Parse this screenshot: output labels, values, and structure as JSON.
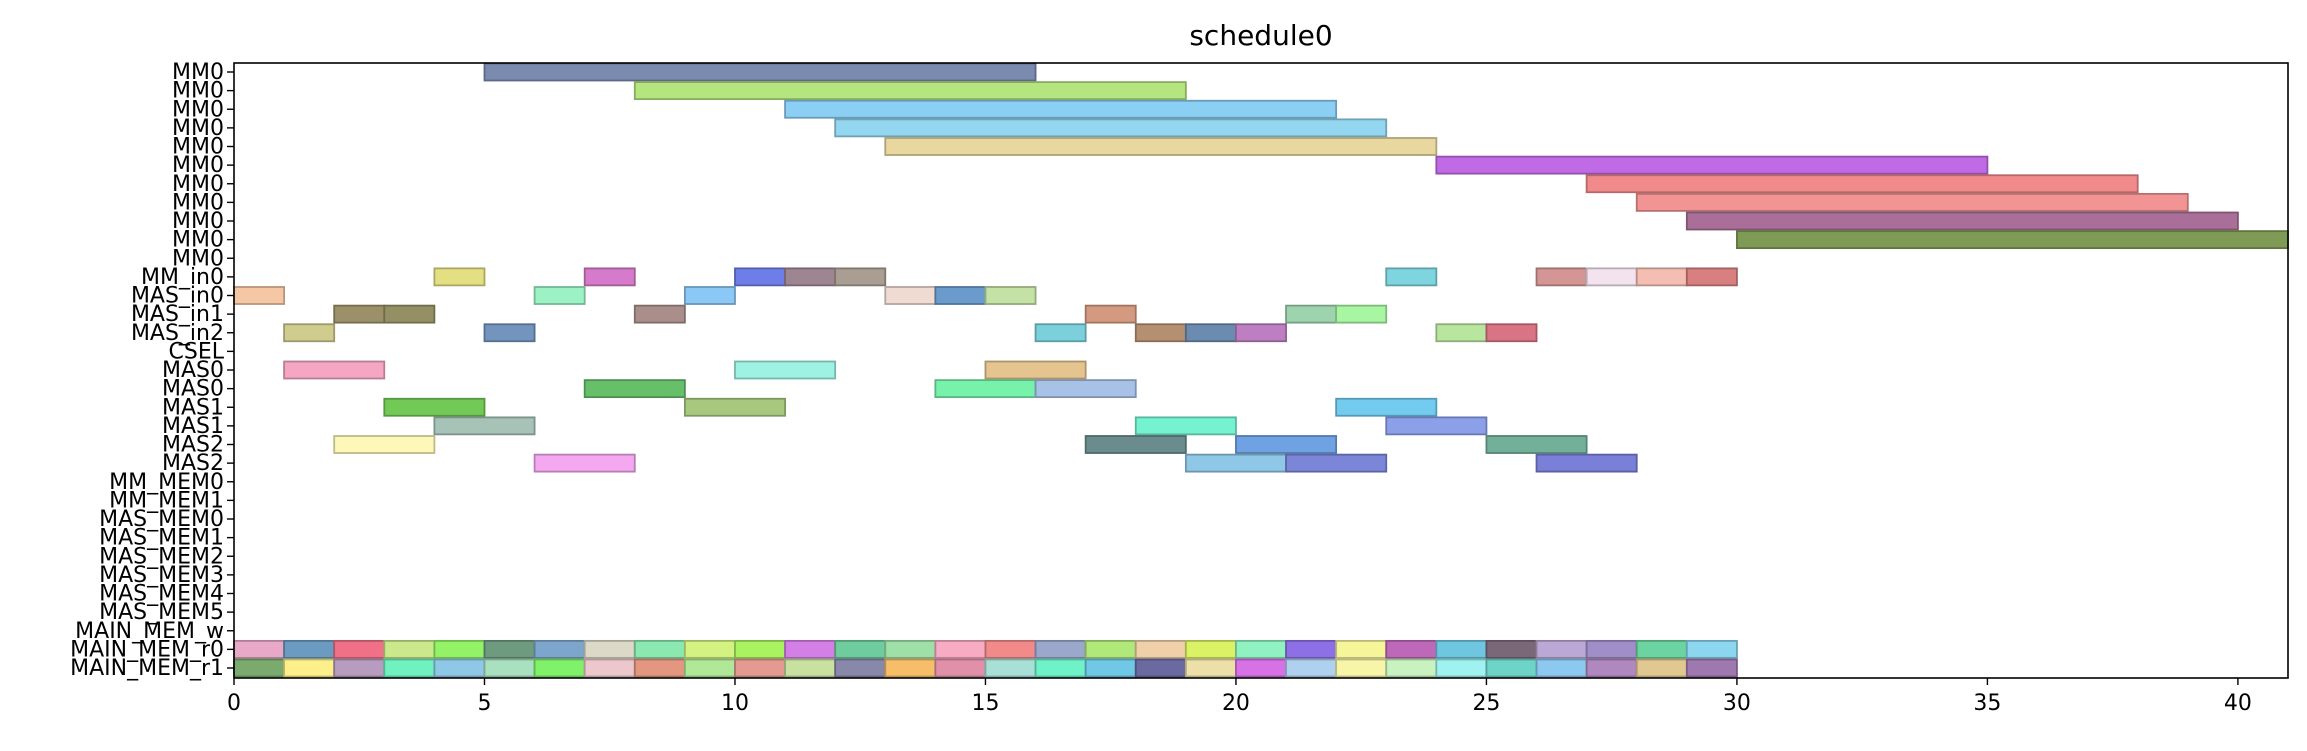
{
  "chart_data": {
    "type": "gantt",
    "title": "schedule0",
    "xlim": [
      0,
      41
    ],
    "x_ticks": [
      "0",
      "5",
      "10",
      "15",
      "20",
      "25",
      "30",
      "35",
      "40"
    ],
    "grid": false,
    "legend": "none",
    "rows": [
      "MM0",
      "MM0",
      "MM0",
      "MM0",
      "MM0",
      "MM0",
      "MM0",
      "MM0",
      "MM0",
      "MM0",
      "MM0",
      "MM_in0",
      "MAS_in0",
      "MAS_in1",
      "MAS_in2",
      "CSEL",
      "MAS0",
      "MAS0",
      "MAS1",
      "MAS1",
      "MAS2",
      "MAS2",
      "MM_MEM0",
      "MM_MEM1",
      "MAS_MEM0",
      "MAS_MEM1",
      "MAS_MEM2",
      "MAS_MEM3",
      "MAS_MEM4",
      "MAS_MEM5",
      "MAIN_MEM_w",
      "MAIN_MEM_r0",
      "MAIN_MEM_r1"
    ],
    "tasks": [
      {
        "row": 0,
        "start": 5,
        "end": 16,
        "color": "#7b8bb0"
      },
      {
        "row": 1,
        "start": 8,
        "end": 19,
        "color": "#b5e57e"
      },
      {
        "row": 2,
        "start": 11,
        "end": 22,
        "color": "#8ccff5"
      },
      {
        "row": 3,
        "start": 12,
        "end": 23,
        "color": "#92d6ef"
      },
      {
        "row": 4,
        "start": 13,
        "end": 24,
        "color": "#e8d8a0"
      },
      {
        "row": 5,
        "start": 24,
        "end": 35,
        "color": "#c06ae6"
      },
      {
        "row": 6,
        "start": 27,
        "end": 38,
        "color": "#f18a8a"
      },
      {
        "row": 7,
        "start": 28,
        "end": 39,
        "color": "#f29494"
      },
      {
        "row": 8,
        "start": 29,
        "end": 40,
        "color": "#a96f98"
      },
      {
        "row": 9,
        "start": 30,
        "end": 41,
        "color": "#7f9a55"
      },
      {
        "row": 11,
        "start": 4,
        "end": 5,
        "color": "#e3df82"
      },
      {
        "row": 11,
        "start": 7,
        "end": 8,
        "color": "#d67bcb"
      },
      {
        "row": 11,
        "start": 10,
        "end": 11,
        "color": "#6e7ee8"
      },
      {
        "row": 11,
        "start": 11,
        "end": 12,
        "color": "#9e8592"
      },
      {
        "row": 11,
        "start": 12,
        "end": 13,
        "color": "#a99e91"
      },
      {
        "row": 11,
        "start": 23,
        "end": 24,
        "color": "#7fd5df"
      },
      {
        "row": 11,
        "start": 26,
        "end": 27,
        "color": "#d49595"
      },
      {
        "row": 11,
        "start": 27,
        "end": 28,
        "color": "#f3e3ee"
      },
      {
        "row": 11,
        "start": 28,
        "end": 29,
        "color": "#f4bfb2"
      },
      {
        "row": 11,
        "start": 29,
        "end": 30,
        "color": "#d88080"
      },
      {
        "row": 12,
        "start": 0,
        "end": 1,
        "color": "#f6c7a4"
      },
      {
        "row": 12,
        "start": 6,
        "end": 7,
        "color": "#9cf2c4"
      },
      {
        "row": 12,
        "start": 9,
        "end": 10,
        "color": "#8cc8f5"
      },
      {
        "row": 12,
        "start": 13,
        "end": 14,
        "color": "#f0dbd2"
      },
      {
        "row": 12,
        "start": 14,
        "end": 15,
        "color": "#6b9bcc"
      },
      {
        "row": 12,
        "start": 15,
        "end": 16,
        "color": "#c4e2a5"
      },
      {
        "row": 13,
        "start": 2,
        "end": 3,
        "color": "#9b9067"
      },
      {
        "row": 13,
        "start": 3,
        "end": 4,
        "color": "#949064"
      },
      {
        "row": 13,
        "start": 8,
        "end": 9,
        "color": "#a98e8b"
      },
      {
        "row": 13,
        "start": 17,
        "end": 18,
        "color": "#d49a80"
      },
      {
        "row": 13,
        "start": 21,
        "end": 22,
        "color": "#9dd3ad"
      },
      {
        "row": 13,
        "start": 22,
        "end": 23,
        "color": "#a8f5a2"
      },
      {
        "row": 14,
        "start": 1,
        "end": 2,
        "color": "#cfcc8e"
      },
      {
        "row": 14,
        "start": 5,
        "end": 6,
        "color": "#7394bd"
      },
      {
        "row": 14,
        "start": 16,
        "end": 17,
        "color": "#7bd0dc"
      },
      {
        "row": 14,
        "start": 18,
        "end": 19,
        "color": "#b59070"
      },
      {
        "row": 14,
        "start": 19,
        "end": 20,
        "color": "#6b8bb0"
      },
      {
        "row": 14,
        "start": 20,
        "end": 21,
        "color": "#bd7fc2"
      },
      {
        "row": 14,
        "start": 24,
        "end": 25,
        "color": "#b9e69f"
      },
      {
        "row": 14,
        "start": 25,
        "end": 26,
        "color": "#d97484"
      },
      {
        "row": 16,
        "start": 1,
        "end": 3,
        "color": "#f5a6c2"
      },
      {
        "row": 16,
        "start": 10,
        "end": 12,
        "color": "#9ef2e4"
      },
      {
        "row": 16,
        "start": 15,
        "end": 17,
        "color": "#e6c48f"
      },
      {
        "row": 17,
        "start": 7,
        "end": 9,
        "color": "#67bf6a"
      },
      {
        "row": 17,
        "start": 14,
        "end": 16,
        "color": "#77f2ab"
      },
      {
        "row": 17,
        "start": 16,
        "end": 18,
        "color": "#a7c2e6"
      },
      {
        "row": 18,
        "start": 3,
        "end": 5,
        "color": "#73c955"
      },
      {
        "row": 18,
        "start": 9,
        "end": 11,
        "color": "#a7c97f"
      },
      {
        "row": 18,
        "start": 22,
        "end": 24,
        "color": "#73ccf0"
      },
      {
        "row": 19,
        "start": 4,
        "end": 6,
        "color": "#a7c2b7"
      },
      {
        "row": 19,
        "start": 18,
        "end": 20,
        "color": "#75f2d0"
      },
      {
        "row": 19,
        "start": 23,
        "end": 25,
        "color": "#8ca0ea"
      },
      {
        "row": 20,
        "start": 2,
        "end": 4,
        "color": "#fdf7b8"
      },
      {
        "row": 20,
        "start": 17,
        "end": 19,
        "color": "#6a8c8f"
      },
      {
        "row": 20,
        "start": 20,
        "end": 22,
        "color": "#6fa2e3"
      },
      {
        "row": 20,
        "start": 25,
        "end": 27,
        "color": "#72b09a"
      },
      {
        "row": 21,
        "start": 6,
        "end": 8,
        "color": "#f3a8ef"
      },
      {
        "row": 21,
        "start": 19,
        "end": 21,
        "color": "#8fc8e6"
      },
      {
        "row": 21,
        "start": 21,
        "end": 23,
        "color": "#7b86d8"
      },
      {
        "row": 21,
        "start": 26,
        "end": 28,
        "color": "#7a7fd8"
      },
      {
        "row": 31,
        "start": 0,
        "end": 1,
        "color": "#e8a8c8"
      },
      {
        "row": 31,
        "start": 1,
        "end": 2,
        "color": "#6b9bc0"
      },
      {
        "row": 31,
        "start": 2,
        "end": 3,
        "color": "#f07088"
      },
      {
        "row": 31,
        "start": 3,
        "end": 4,
        "color": "#cbe88a"
      },
      {
        "row": 31,
        "start": 4,
        "end": 5,
        "color": "#94f266"
      },
      {
        "row": 31,
        "start": 5,
        "end": 6,
        "color": "#6e9a80"
      },
      {
        "row": 31,
        "start": 6,
        "end": 7,
        "color": "#7ea6cc"
      },
      {
        "row": 31,
        "start": 7,
        "end": 8,
        "color": "#dcd9c8"
      },
      {
        "row": 31,
        "start": 8,
        "end": 9,
        "color": "#8ae8b0"
      },
      {
        "row": 31,
        "start": 9,
        "end": 10,
        "color": "#d3f282"
      },
      {
        "row": 31,
        "start": 10,
        "end": 11,
        "color": "#a9f260"
      },
      {
        "row": 31,
        "start": 11,
        "end": 12,
        "color": "#d47fe6"
      },
      {
        "row": 31,
        "start": 12,
        "end": 13,
        "color": "#6fcc9c"
      },
      {
        "row": 31,
        "start": 13,
        "end": 14,
        "color": "#9fe0a8"
      },
      {
        "row": 31,
        "start": 14,
        "end": 15,
        "color": "#f7acc4"
      },
      {
        "row": 31,
        "start": 15,
        "end": 16,
        "color": "#f28a8a"
      },
      {
        "row": 31,
        "start": 16,
        "end": 17,
        "color": "#9ba8cc"
      },
      {
        "row": 31,
        "start": 17,
        "end": 18,
        "color": "#b0e87a"
      },
      {
        "row": 31,
        "start": 18,
        "end": 19,
        "color": "#f0d0a8"
      },
      {
        "row": 31,
        "start": 19,
        "end": 20,
        "color": "#dcf265"
      },
      {
        "row": 31,
        "start": 20,
        "end": 21,
        "color": "#8ff2c0"
      },
      {
        "row": 31,
        "start": 21,
        "end": 22,
        "color": "#8e70e6"
      },
      {
        "row": 31,
        "start": 22,
        "end": 23,
        "color": "#f7f59a"
      },
      {
        "row": 31,
        "start": 23,
        "end": 24,
        "color": "#bd68b8"
      },
      {
        "row": 31,
        "start": 24,
        "end": 25,
        "color": "#6ec6e0"
      },
      {
        "row": 31,
        "start": 25,
        "end": 26,
        "color": "#7a6878"
      },
      {
        "row": 31,
        "start": 26,
        "end": 27,
        "color": "#bca8d4"
      },
      {
        "row": 31,
        "start": 27,
        "end": 28,
        "color": "#a08ec8"
      },
      {
        "row": 31,
        "start": 28,
        "end": 29,
        "color": "#6cd4a0"
      },
      {
        "row": 31,
        "start": 29,
        "end": 30,
        "color": "#8cd6f0"
      },
      {
        "row": 32,
        "start": 0,
        "end": 1,
        "color": "#7aaa6e"
      },
      {
        "row": 32,
        "start": 1,
        "end": 2,
        "color": "#fdf08a"
      },
      {
        "row": 32,
        "start": 2,
        "end": 3,
        "color": "#b89cc0"
      },
      {
        "row": 32,
        "start": 3,
        "end": 4,
        "color": "#6ff2c0"
      },
      {
        "row": 32,
        "start": 4,
        "end": 5,
        "color": "#8ec8e6"
      },
      {
        "row": 32,
        "start": 5,
        "end": 6,
        "color": "#a8e0c0"
      },
      {
        "row": 32,
        "start": 6,
        "end": 7,
        "color": "#80f26a"
      },
      {
        "row": 32,
        "start": 7,
        "end": 8,
        "color": "#ecc8cc"
      },
      {
        "row": 32,
        "start": 8,
        "end": 9,
        "color": "#e39680"
      },
      {
        "row": 32,
        "start": 9,
        "end": 10,
        "color": "#b0e898"
      },
      {
        "row": 32,
        "start": 10,
        "end": 11,
        "color": "#e39a90"
      },
      {
        "row": 32,
        "start": 11,
        "end": 12,
        "color": "#c8e0a0"
      },
      {
        "row": 32,
        "start": 12,
        "end": 13,
        "color": "#8888aa"
      },
      {
        "row": 32,
        "start": 13,
        "end": 14,
        "color": "#f7be6a"
      },
      {
        "row": 32,
        "start": 14,
        "end": 15,
        "color": "#e090a8"
      },
      {
        "row": 32,
        "start": 15,
        "end": 16,
        "color": "#a8e0d8"
      },
      {
        "row": 32,
        "start": 16,
        "end": 17,
        "color": "#6ff2c8"
      },
      {
        "row": 32,
        "start": 17,
        "end": 18,
        "color": "#6ec8e6"
      },
      {
        "row": 32,
        "start": 18,
        "end": 19,
        "color": "#6a6aa0"
      },
      {
        "row": 32,
        "start": 19,
        "end": 20,
        "color": "#ece0a8"
      },
      {
        "row": 32,
        "start": 20,
        "end": 21,
        "color": "#d870e6"
      },
      {
        "row": 32,
        "start": 21,
        "end": 22,
        "color": "#b0d0f0"
      },
      {
        "row": 32,
        "start": 22,
        "end": 23,
        "color": "#f7f5a8"
      },
      {
        "row": 32,
        "start": 23,
        "end": 24,
        "color": "#c8f2c0"
      },
      {
        "row": 32,
        "start": 24,
        "end": 25,
        "color": "#a0f2f0"
      },
      {
        "row": 32,
        "start": 25,
        "end": 26,
        "color": "#6ed4c8"
      },
      {
        "row": 32,
        "start": 26,
        "end": 27,
        "color": "#8cc8f0"
      },
      {
        "row": 32,
        "start": 27,
        "end": 28,
        "color": "#b088c0"
      },
      {
        "row": 32,
        "start": 28,
        "end": 29,
        "color": "#e0c890"
      },
      {
        "row": 32,
        "start": 29,
        "end": 30,
        "color": "#a078b0"
      }
    ]
  }
}
